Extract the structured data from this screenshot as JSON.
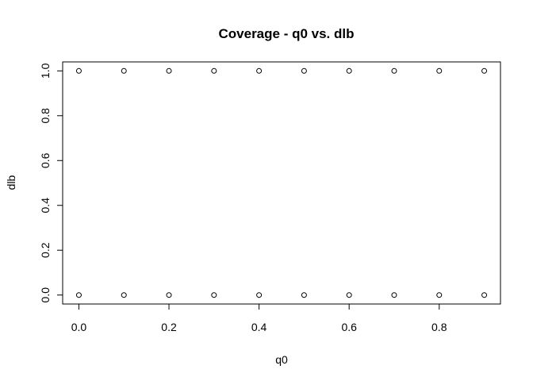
{
  "chart_data": {
    "type": "scatter",
    "title": "Coverage - q0 vs. dlb",
    "xlabel": "q0",
    "ylabel": "dlb",
    "xlim": [
      -0.036,
      0.936
    ],
    "ylim": [
      -0.04,
      1.04
    ],
    "x_ticks": [
      0.0,
      0.2,
      0.4,
      0.6,
      0.8
    ],
    "x_tick_labels": [
      "0.0",
      "0.2",
      "0.4",
      "0.6",
      "0.8"
    ],
    "y_ticks": [
      0.0,
      0.2,
      0.4,
      0.6,
      0.8,
      1.0
    ],
    "y_tick_labels": [
      "0.0",
      "0.2",
      "0.4",
      "0.6",
      "0.8",
      "1.0"
    ],
    "grid": false,
    "legend": "none",
    "marker": "open-circle",
    "points": [
      {
        "x": 0.0,
        "y": 1
      },
      {
        "x": 0.1,
        "y": 1
      },
      {
        "x": 0.2,
        "y": 1
      },
      {
        "x": 0.3,
        "y": 1
      },
      {
        "x": 0.4,
        "y": 1
      },
      {
        "x": 0.5,
        "y": 1
      },
      {
        "x": 0.6,
        "y": 1
      },
      {
        "x": 0.7,
        "y": 1
      },
      {
        "x": 0.8,
        "y": 1
      },
      {
        "x": 0.9,
        "y": 1
      },
      {
        "x": 0.0,
        "y": 0
      },
      {
        "x": 0.1,
        "y": 0
      },
      {
        "x": 0.2,
        "y": 0
      },
      {
        "x": 0.3,
        "y": 0
      },
      {
        "x": 0.4,
        "y": 0
      },
      {
        "x": 0.5,
        "y": 0
      },
      {
        "x": 0.6,
        "y": 0
      },
      {
        "x": 0.7,
        "y": 0
      },
      {
        "x": 0.8,
        "y": 0
      },
      {
        "x": 0.9,
        "y": 0
      }
    ]
  }
}
